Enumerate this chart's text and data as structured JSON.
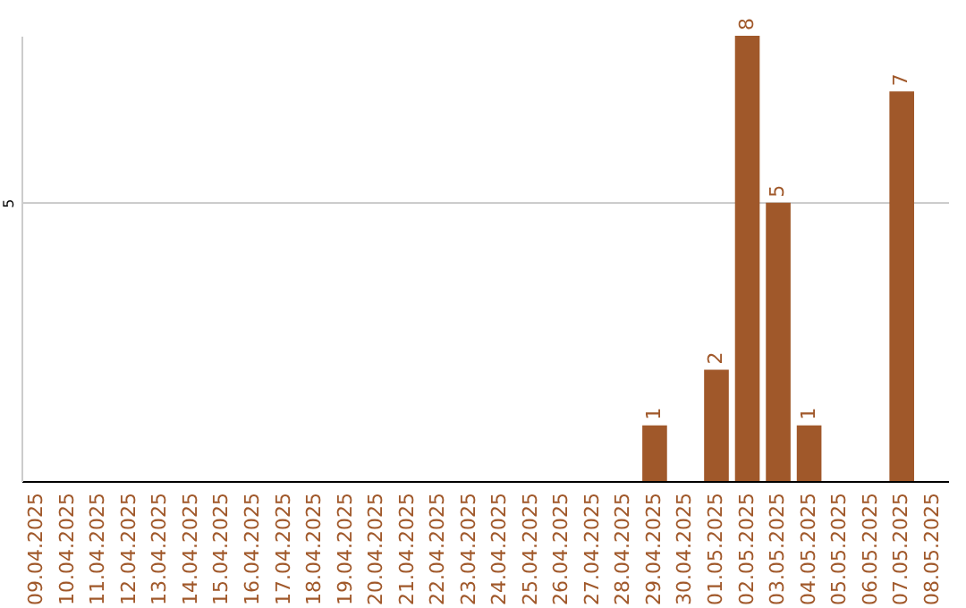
{
  "chart_data": {
    "type": "bar",
    "categories": [
      "09.04.2025",
      "10.04.2025",
      "11.04.2025",
      "12.04.2025",
      "13.04.2025",
      "14.04.2025",
      "15.04.2025",
      "16.04.2025",
      "17.04.2025",
      "18.04.2025",
      "19.04.2025",
      "20.04.2025",
      "21.04.2025",
      "22.04.2025",
      "23.04.2025",
      "24.04.2025",
      "25.04.2025",
      "26.04.2025",
      "27.04.2025",
      "28.04.2025",
      "29.04.2025",
      "30.04.2025",
      "01.05.2025",
      "02.05.2025",
      "03.05.2025",
      "04.05.2025",
      "05.05.2025",
      "06.05.2025",
      "07.05.2025",
      "08.05.2025"
    ],
    "values": [
      null,
      null,
      null,
      null,
      null,
      null,
      null,
      null,
      null,
      null,
      null,
      null,
      null,
      null,
      null,
      null,
      null,
      null,
      null,
      null,
      1,
      null,
      2,
      8,
      5,
      1,
      null,
      null,
      7,
      null
    ],
    "color": "#a0582a",
    "ylim": [
      0,
      8
    ],
    "yticks": [
      5
    ],
    "grid": "y",
    "data_labels": true
  }
}
